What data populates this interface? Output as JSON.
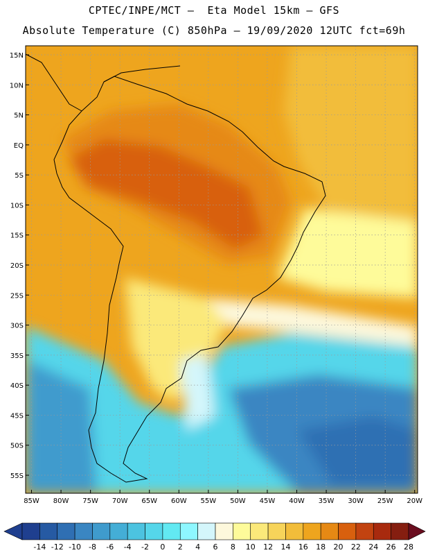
{
  "header": {
    "line1": "CPTEC/INPE/MCT —  Eta Model 15km — GFS",
    "line2": "Absolute Temperature (C) 850hPa — 19/09/2020 12UTC fct=69h"
  },
  "map": {
    "lat_labels": [
      "15N",
      "10N",
      "5N",
      "EQ",
      "5S",
      "10S",
      "15S",
      "20S",
      "25S",
      "30S",
      "35S",
      "40S",
      "45S",
      "50S",
      "55S"
    ],
    "lat_values": [
      15,
      10,
      5,
      0,
      -5,
      -10,
      -15,
      -20,
      -25,
      -30,
      -35,
      -40,
      -45,
      -50,
      -55
    ],
    "lon_labels": [
      "85W",
      "80W",
      "75W",
      "70W",
      "65W",
      "60W",
      "55W",
      "50W",
      "45W",
      "40W",
      "35W",
      "30W",
      "25W",
      "20W"
    ],
    "lon_values": [
      -85,
      -80,
      -75,
      -70,
      -65,
      -60,
      -55,
      -50,
      -45,
      -40,
      -35,
      -30,
      -25,
      -20
    ],
    "lat_range": [
      -58,
      16.5
    ],
    "lon_range": [
      -86,
      -19.5
    ],
    "grid": true
  },
  "colorbar": {
    "labels": [
      "-14",
      "-12",
      "-10",
      "-8",
      "-6",
      "-4",
      "-2",
      "0",
      "2",
      "4",
      "6",
      "8",
      "10",
      "12",
      "14",
      "16",
      "18",
      "20",
      "22",
      "24",
      "26",
      "28"
    ],
    "colors": [
      "#1f3f8f",
      "#265aa3",
      "#2f6fb3",
      "#3a86c2",
      "#3f9bcd",
      "#44aed6",
      "#4cc3e0",
      "#55d6ea",
      "#62e9f2",
      "#8ef7ff",
      "#d4f6fb",
      "#fdf8dc",
      "#fefb9a",
      "#fbe97a",
      "#f7d45a",
      "#f2bd3a",
      "#eea51e",
      "#e68914",
      "#d8600e",
      "#c24310",
      "#a82a0e",
      "#851e10",
      "#6a0d1f"
    ]
  }
}
